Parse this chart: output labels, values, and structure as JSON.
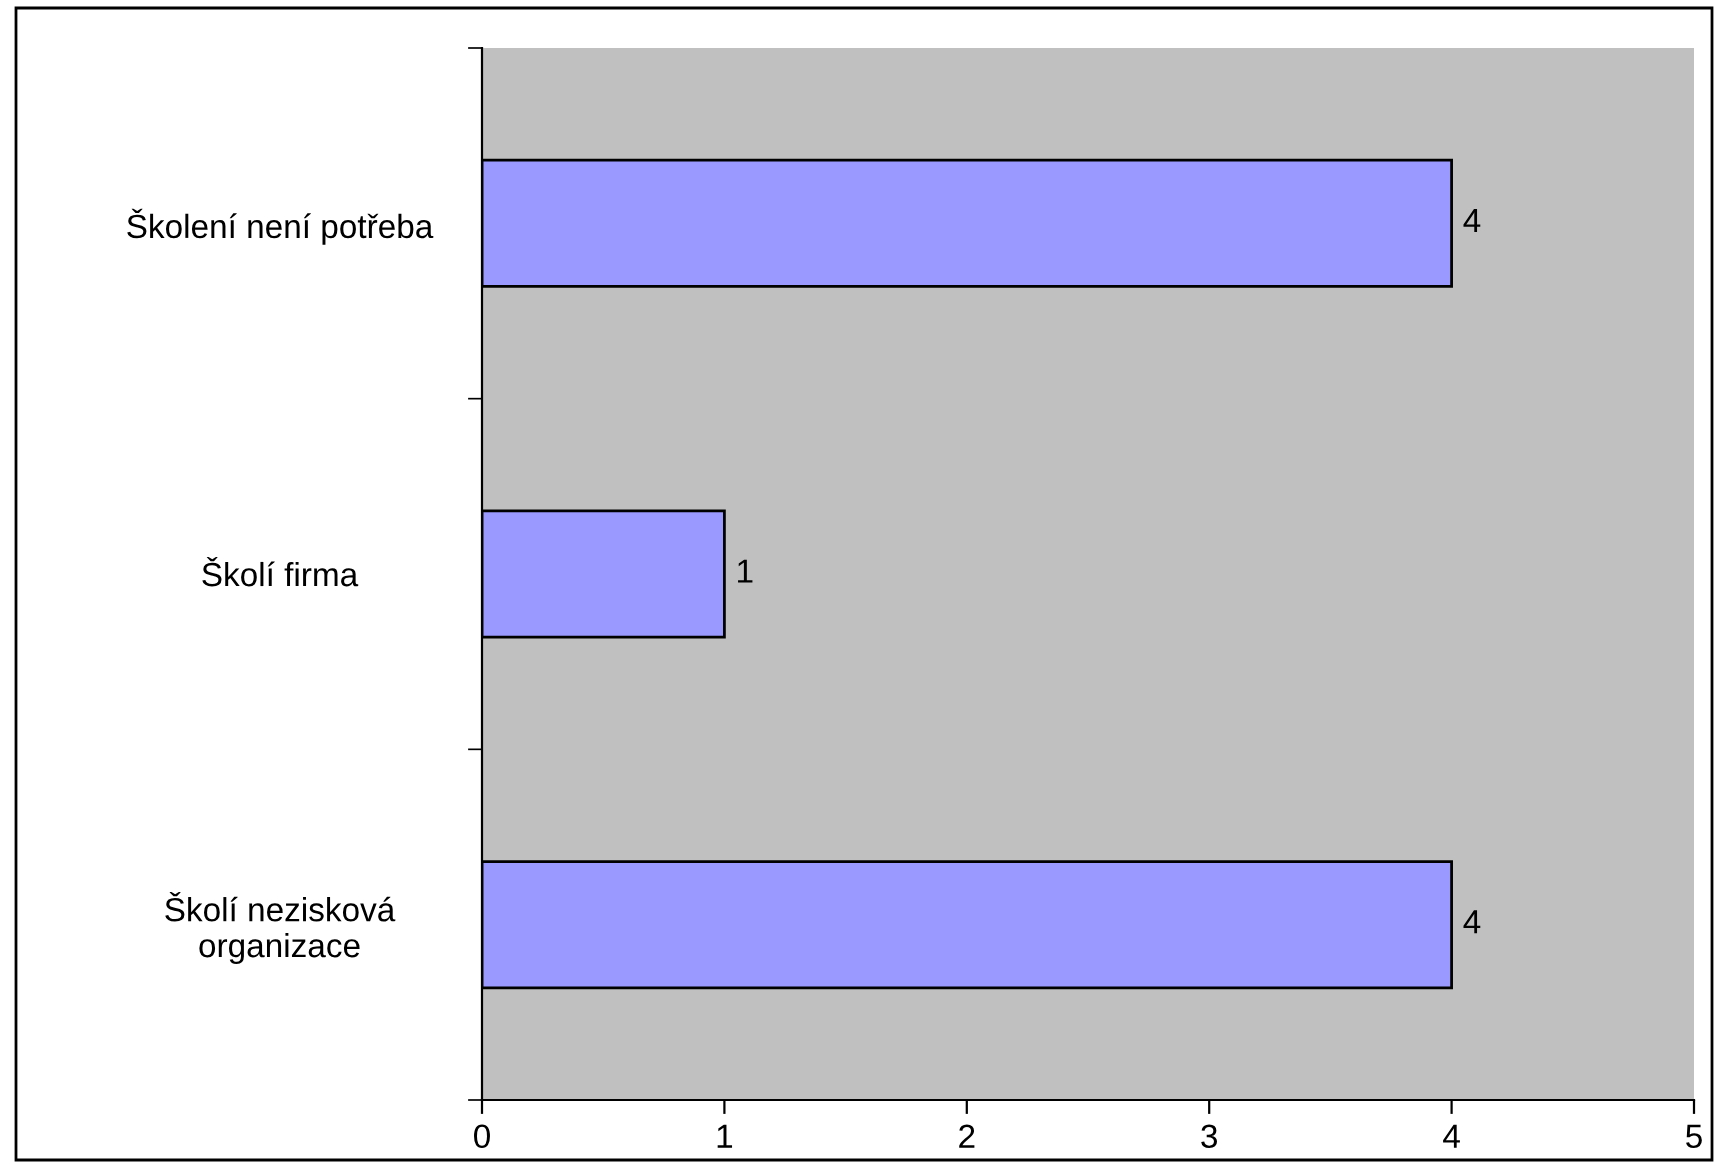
{
  "chart_data": {
    "type": "bar",
    "orientation": "horizontal",
    "categories": [
      "Školení není potřeba",
      "Školí firma",
      "Školí nezisková\norganizace"
    ],
    "values": [
      4,
      1,
      4
    ],
    "color": "#9999ff",
    "xlim": [
      0,
      5
    ],
    "xticks": [
      0,
      1,
      2,
      3,
      4,
      5
    ],
    "grid": false,
    "data_labels": true
  }
}
